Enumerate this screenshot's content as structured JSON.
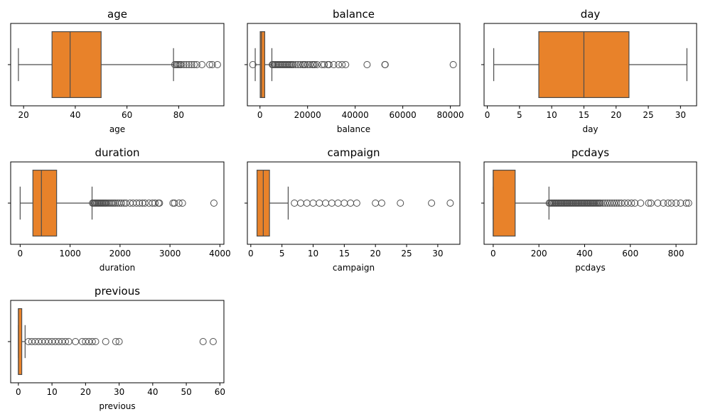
{
  "chart_data": [
    {
      "type": "box",
      "title": "age",
      "xlabel": "age",
      "xlim": [
        15,
        97.5
      ],
      "xticks": [
        20,
        40,
        60,
        80
      ],
      "box": {
        "whislo": 18,
        "q1": 31,
        "median": 38,
        "q3": 50,
        "whishi": 78
      },
      "fliers": [
        78.5,
        79,
        79.5,
        80,
        80.5,
        81,
        82,
        83,
        84,
        85,
        86,
        87,
        89,
        92,
        93,
        95
      ]
    },
    {
      "type": "box",
      "title": "balance",
      "xlabel": "balance",
      "xlim": [
        -5300,
        84000
      ],
      "xticks": [
        0,
        20000,
        40000,
        60000,
        80000
      ],
      "box": {
        "whislo": -2000,
        "q1": 100,
        "median": 600,
        "q3": 2000,
        "whishi": 5000
      },
      "fliers": [
        -3000,
        5200,
        5500,
        6000,
        6500,
        7000,
        7500,
        8000,
        8500,
        9000,
        9500,
        10000,
        10500,
        11000,
        11500,
        12000,
        12500,
        13000,
        13500,
        14000,
        15000,
        16000,
        17000,
        18000,
        18500,
        19000,
        20000,
        21000,
        22000,
        22500,
        23000,
        24000,
        26000,
        27000,
        28500,
        29000,
        31000,
        33000,
        34500,
        36000,
        45000,
        52500,
        52600,
        81200
      ]
    },
    {
      "type": "box",
      "title": "day",
      "xlabel": "day",
      "xlim": [
        -0.5,
        32.5
      ],
      "xticks": [
        0,
        5,
        10,
        15,
        20,
        25,
        30
      ],
      "box": {
        "whislo": 1,
        "q1": 8,
        "median": 15,
        "q3": 22,
        "whishi": 31
      },
      "fliers": []
    },
    {
      "type": "box",
      "title": "duration",
      "xlabel": "duration",
      "xlim": [
        -190,
        4080
      ],
      "xticks": [
        0,
        1000,
        2000,
        3000,
        4000
      ],
      "box": {
        "whislo": 0,
        "q1": 255,
        "median": 426,
        "q3": 730,
        "whishi": 1440
      },
      "fliers": [
        1450,
        1470,
        1490,
        1510,
        1530,
        1550,
        1570,
        1590,
        1610,
        1630,
        1650,
        1670,
        1690,
        1710,
        1730,
        1760,
        1790,
        1820,
        1850,
        1880,
        1910,
        1950,
        1990,
        2030,
        2080,
        2120,
        2200,
        2260,
        2330,
        2390,
        2450,
        2500,
        2580,
        2650,
        2700,
        2770,
        2790,
        3060,
        3090,
        3180,
        3250,
        3880
      ]
    },
    {
      "type": "box",
      "title": "campaign",
      "xlabel": "campaign",
      "xlim": [
        -0.55,
        33.55
      ],
      "xticks": [
        0,
        5,
        10,
        15,
        20,
        25,
        30
      ],
      "box": {
        "whislo": 1,
        "q1": 1,
        "median": 2,
        "q3": 3,
        "whishi": 6
      },
      "fliers": [
        7,
        8,
        9,
        10,
        11,
        12,
        13,
        14,
        15,
        16,
        17,
        20,
        21,
        24,
        29,
        32
      ]
    },
    {
      "type": "box",
      "title": "pcdays",
      "xlabel": "pcdays",
      "xlim": [
        -40,
        890
      ],
      "xticks": [
        0,
        200,
        400,
        600,
        800
      ],
      "box": {
        "whislo": 0,
        "q1": 0,
        "median": 0,
        "q3": 96,
        "whishi": 244
      },
      "fliers": [
        245,
        250,
        255,
        260,
        265,
        270,
        275,
        280,
        285,
        290,
        295,
        300,
        305,
        310,
        315,
        320,
        325,
        330,
        335,
        340,
        345,
        350,
        355,
        360,
        365,
        370,
        375,
        380,
        385,
        390,
        395,
        400,
        405,
        410,
        415,
        420,
        425,
        430,
        435,
        440,
        445,
        450,
        455,
        460,
        465,
        470,
        480,
        490,
        500,
        510,
        520,
        530,
        540,
        550,
        560,
        575,
        590,
        605,
        620,
        645,
        680,
        690,
        720,
        745,
        765,
        780,
        800,
        820,
        845,
        855
      ]
    },
    {
      "type": "box",
      "title": "previous",
      "xlabel": "previous",
      "xlim": [
        -2.3,
        61.2
      ],
      "xticks": [
        0,
        10,
        20,
        30,
        40,
        50,
        60
      ],
      "box": {
        "whislo": 0,
        "q1": 0,
        "median": 0,
        "q3": 1,
        "whishi": 2
      },
      "fliers": [
        3,
        4,
        5,
        6,
        7,
        8,
        9,
        10,
        11,
        12,
        13,
        14,
        15,
        17,
        19,
        20,
        21,
        22,
        23,
        26,
        29,
        30,
        55,
        58
      ]
    }
  ],
  "style": {
    "box_fill": "#e8822a",
    "line_color": "#4d4d4d",
    "axis_color": "#000000"
  }
}
